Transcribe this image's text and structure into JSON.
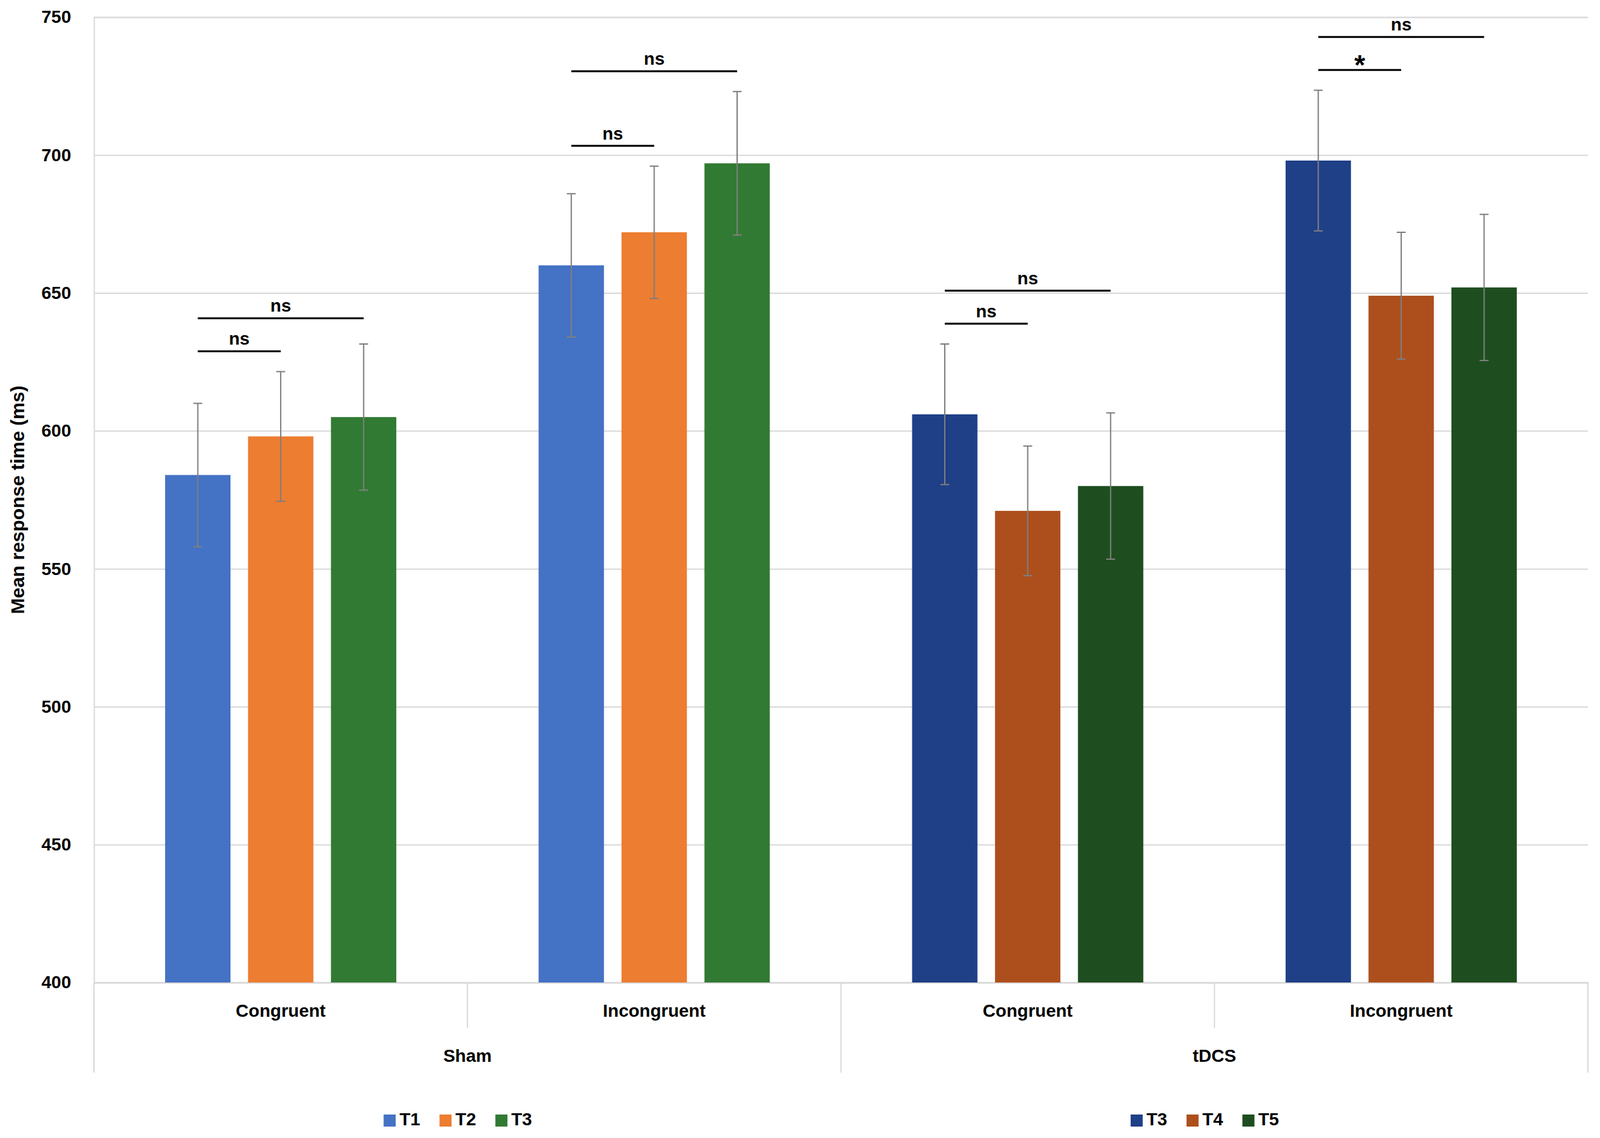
{
  "chart_data": {
    "type": "bar",
    "y_label": "Mean response time (ms)",
    "categories": [
      "Congruent",
      "Incongruent",
      "Congruent",
      "Incongruent"
    ],
    "groups": [
      "Sham",
      "Sham",
      "tDCS",
      "tDCS"
    ],
    "ylim": [
      400,
      750
    ],
    "yticks": [
      400,
      450,
      500,
      550,
      600,
      650,
      700,
      750
    ],
    "grid": true,
    "legend": "bottom",
    "series": [
      {
        "name": "T1",
        "color": "#4472c4",
        "values": [
          584,
          660,
          null,
          null
        ],
        "errors": [
          26,
          26,
          null,
          null
        ]
      },
      {
        "name": "T2",
        "color": "#ed7d31",
        "values": [
          598,
          672,
          null,
          null
        ],
        "errors": [
          23.5,
          24,
          null,
          null
        ]
      },
      {
        "name": "T3",
        "color": "#317a33",
        "values": [
          605,
          697,
          null,
          null
        ],
        "errors": [
          26.5,
          26,
          null,
          null
        ]
      },
      {
        "name": "T3",
        "color": "#1f3f87",
        "values": [
          null,
          null,
          606,
          698
        ],
        "errors": [
          null,
          null,
          25.5,
          25.5
        ]
      },
      {
        "name": "T4",
        "color": "#ad4f1c",
        "values": [
          null,
          null,
          571,
          649
        ],
        "errors": [
          null,
          null,
          23.5,
          23
        ]
      },
      {
        "name": "T5",
        "color": "#1e4e20",
        "values": [
          null,
          null,
          580,
          652
        ],
        "errors": [
          null,
          null,
          26.5,
          26.5
        ]
      }
    ],
    "annotations": [
      {
        "text": "ns",
        "category": 0,
        "from": 0,
        "to": 1
      },
      {
        "text": "ns",
        "category": 0,
        "from": 0,
        "to": 2
      },
      {
        "text": "ns",
        "category": 1,
        "from": 0,
        "to": 1
      },
      {
        "text": "ns",
        "category": 1,
        "from": 0,
        "to": 2
      },
      {
        "text": "ns",
        "category": 2,
        "from": 3,
        "to": 4
      },
      {
        "text": "ns",
        "category": 2,
        "from": 3,
        "to": 5
      },
      {
        "text": "*",
        "category": 3,
        "from": 3,
        "to": 4
      },
      {
        "text": "ns",
        "category": 3,
        "from": 3,
        "to": 5
      }
    ]
  }
}
